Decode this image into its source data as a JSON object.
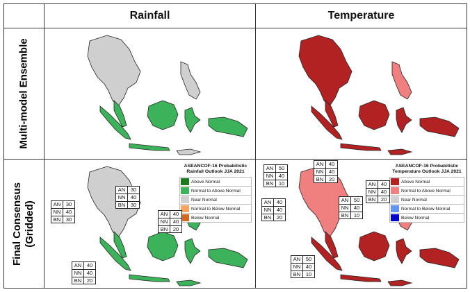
{
  "headers": {
    "col1": "Rainfall",
    "col2": "Temperature"
  },
  "rows": {
    "row1": "Multi-model Ensemble",
    "row2_line1": "Final Consensus",
    "row2_line2": "(Gridded)"
  },
  "legends": {
    "rainfall": {
      "title_line1": "ASEANCOF-16 Probabilistic",
      "title_line2": "Rainfall Outlook JJA 2021",
      "items": [
        {
          "label": "Above Normal",
          "color": "#1f7a1f"
        },
        {
          "label": "Normal to Above Normal",
          "color": "#3cb35a"
        },
        {
          "label": "Near Normal",
          "color": "#cfcfcf"
        },
        {
          "label": "Normal to Below Normal",
          "color": "#f4a460"
        },
        {
          "label": "Below Normal",
          "color": "#d2691e"
        }
      ]
    },
    "temperature": {
      "title_line1": "ASEANCOF-16 Probabilistic",
      "title_line2": "Temperature Outlook JJA 2021",
      "items": [
        {
          "label": "Above Normal",
          "color": "#b22222"
        },
        {
          "label": "Normal to Above Normal",
          "color": "#f08080"
        },
        {
          "label": "Near Normal",
          "color": "#cfcfcf"
        },
        {
          "label": "Normal to Below Normal",
          "color": "#6495ed"
        },
        {
          "label": "Below Normal",
          "color": "#0000cd"
        }
      ]
    }
  },
  "prob_boxes": {
    "rain_west": [
      [
        "AN",
        "30"
      ],
      [
        "NN",
        "40"
      ],
      [
        "BN",
        "30"
      ]
    ],
    "rain_north": [
      [
        "AN",
        "30"
      ],
      [
        "NN",
        "40"
      ],
      [
        "BN",
        "30"
      ]
    ],
    "rain_east": [
      [
        "AN",
        "40"
      ],
      [
        "NN",
        "40"
      ],
      [
        "BN",
        "20"
      ]
    ],
    "rain_south": [
      [
        "AN",
        "40"
      ],
      [
        "NN",
        "40"
      ],
      [
        "BN",
        "20"
      ]
    ],
    "temp_nw": [
      [
        "AN",
        "50"
      ],
      [
        "NN",
        "40"
      ],
      [
        "BN",
        "10"
      ]
    ],
    "temp_n": [
      [
        "AN",
        "40"
      ],
      [
        "NN",
        "40"
      ],
      [
        "BN",
        "20"
      ]
    ],
    "temp_west": [
      [
        "AN",
        "40"
      ],
      [
        "NN",
        "40"
      ],
      [
        "BN",
        "20"
      ]
    ],
    "temp_center": [
      [
        "AN",
        "50"
      ],
      [
        "NN",
        "40"
      ],
      [
        "BN",
        "10"
      ]
    ],
    "temp_east": [
      [
        "AN",
        "40"
      ],
      [
        "NN",
        "40"
      ],
      [
        "BN",
        "20"
      ]
    ],
    "temp_south": [
      [
        "AN",
        "50"
      ],
      [
        "NN",
        "40"
      ],
      [
        "BN",
        "10"
      ]
    ]
  },
  "colors": {
    "rain_green": "#3cb35a",
    "near_normal": "#cfcfcf",
    "temp_dark": "#b22222",
    "temp_light": "#f08080"
  }
}
